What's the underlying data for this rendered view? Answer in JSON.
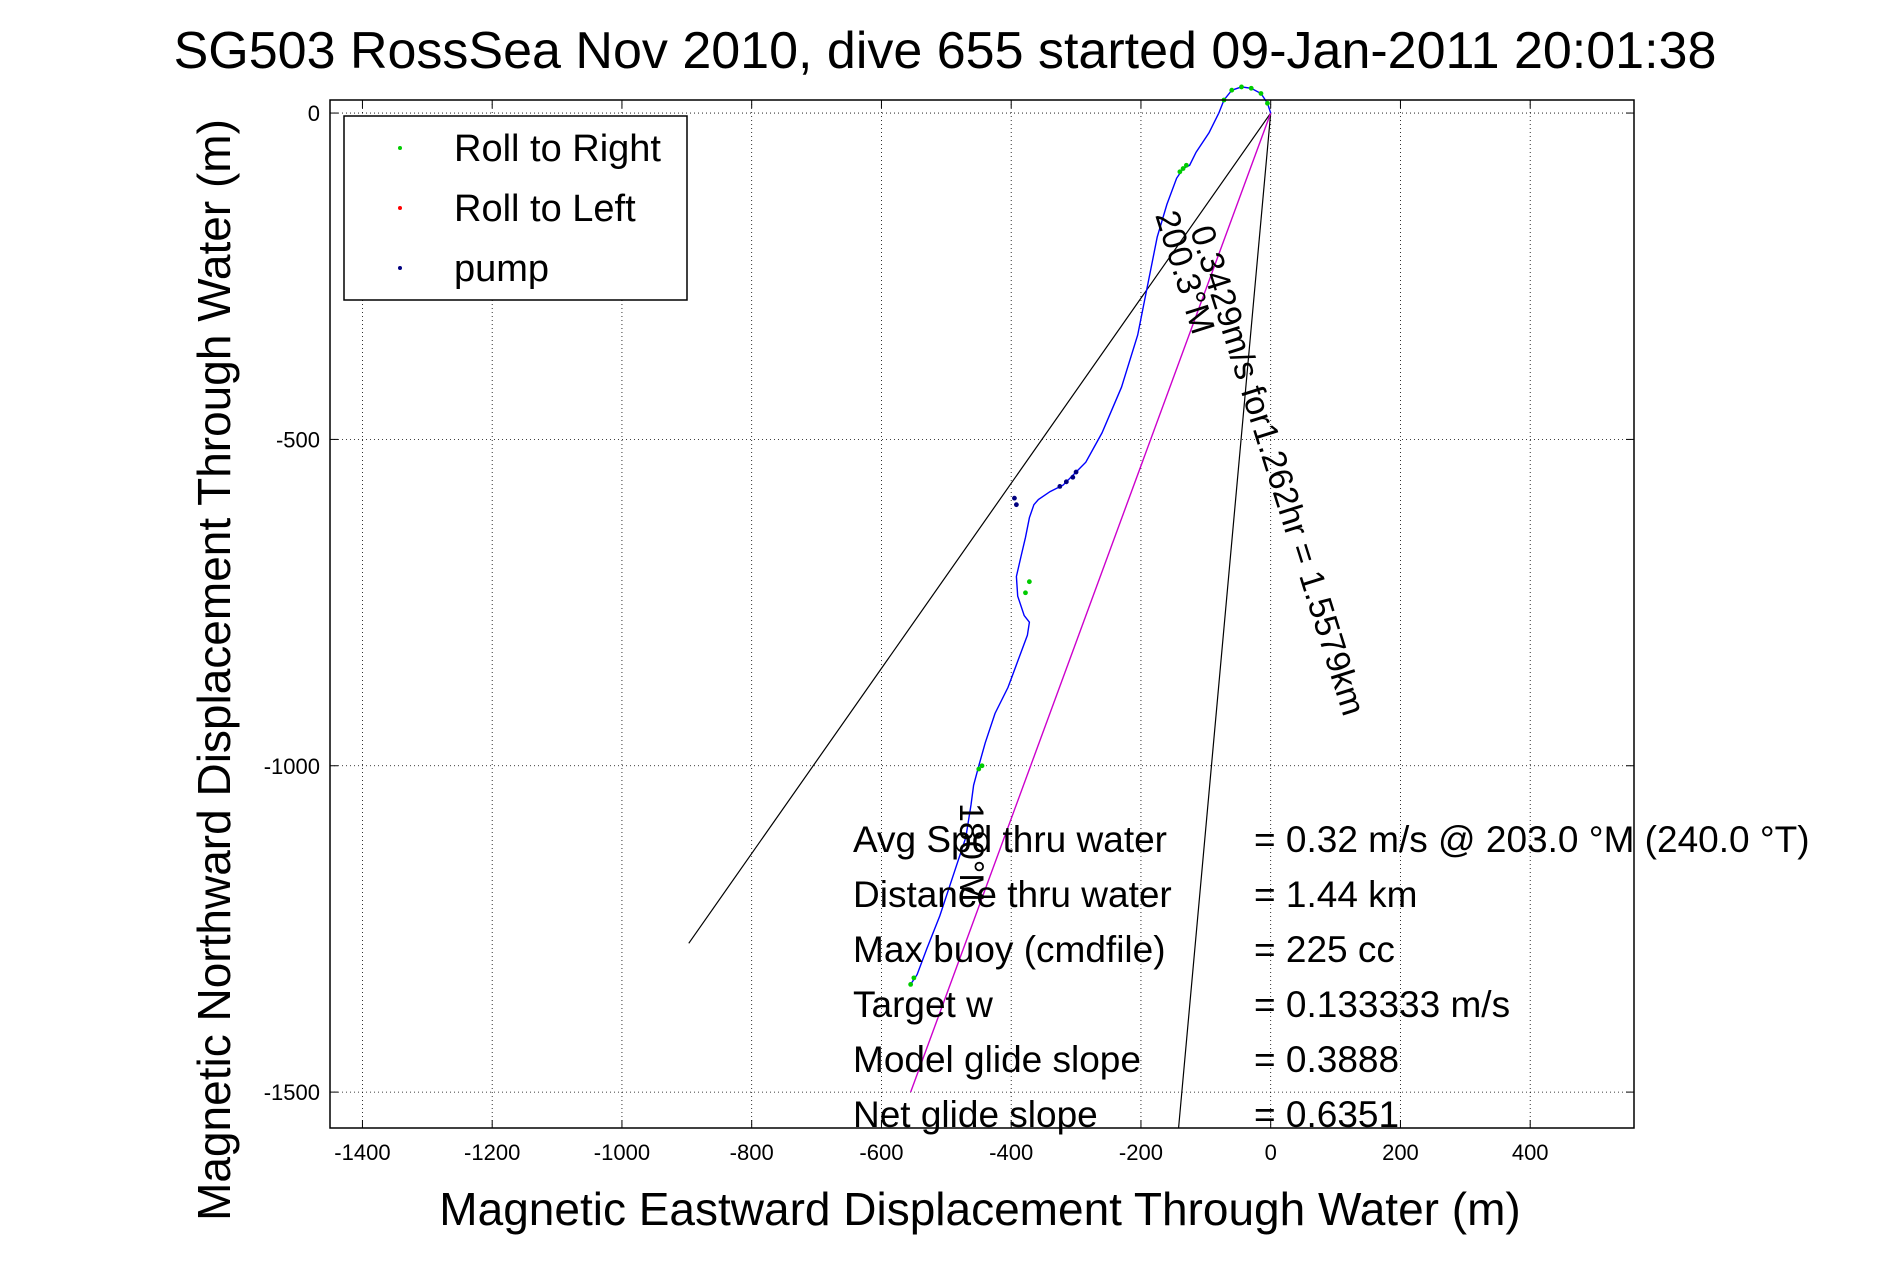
{
  "chart_data": {
    "type": "line",
    "title": "SG503 RossSea Nov 2010, dive 655 started 09-Jan-2011 20:01:38",
    "xlabel": "Magnetic Eastward Displacement Through Water (m)",
    "ylabel": "Magnetic Northward Displacement Through Water (m)",
    "xlim": [
      -1450,
      560
    ],
    "ylim": [
      -1555,
      20
    ],
    "x_ticks": [
      -1400,
      -1200,
      -1000,
      -800,
      -600,
      -400,
      -200,
      0,
      200,
      400
    ],
    "x_tick_labels": [
      "-1400",
      "-1200",
      "-1000",
      "-800",
      "-600",
      "-400",
      "-200",
      "0",
      "200",
      "400"
    ],
    "y_ticks": [
      0,
      -500,
      -1000,
      -1500
    ],
    "y_tick_labels": [
      "0",
      "-500",
      "-1000",
      "-1500"
    ],
    "grid": true,
    "legend_position": "top-left",
    "legend": [
      {
        "label": "Roll to Right",
        "color": "#00cc00"
      },
      {
        "label": "Roll to Left",
        "color": "#ff0000"
      },
      {
        "label": "pump",
        "color": "#000080"
      }
    ],
    "track": {
      "color": "#0000ff",
      "x": [
        0,
        -5,
        -15,
        -30,
        -45,
        -60,
        -72,
        -80,
        -95,
        -115,
        -125,
        -135,
        -145,
        -160,
        -175,
        -185,
        -195,
        -205,
        -230,
        -260,
        -285,
        -300,
        -320,
        -340,
        -358,
        -365,
        -372,
        -378,
        -385,
        -392,
        -390,
        -380,
        -372,
        -375,
        -390,
        -405,
        -425,
        -440,
        -450,
        -458,
        -462,
        -470,
        -490,
        -510,
        -530,
        -545,
        -555
      ],
      "y": [
        0,
        15,
        30,
        38,
        40,
        35,
        20,
        0,
        -30,
        -60,
        -80,
        -85,
        -100,
        -140,
        -190,
        -240,
        -290,
        -340,
        -420,
        -490,
        -535,
        -550,
        -570,
        -580,
        -592,
        -600,
        -620,
        -650,
        -680,
        -710,
        -740,
        -770,
        -780,
        -800,
        -840,
        -880,
        -920,
        -965,
        -1000,
        -1030,
        -1060,
        -1110,
        -1170,
        -1230,
        -1280,
        -1320,
        -1335
      ]
    },
    "roll_right_points": {
      "x": [
        -5,
        -15,
        -30,
        -45,
        -60,
        -72,
        -130,
        -135,
        -140,
        -372,
        -378,
        -445,
        -450,
        -550,
        -555
      ],
      "y": [
        15,
        30,
        38,
        40,
        35,
        20,
        -80,
        -85,
        -90,
        -718,
        -735,
        -1000,
        -1005,
        -1325,
        -1335
      ]
    },
    "pump_points": {
      "x": [
        -300,
        -305,
        -315,
        -325,
        -395,
        -392
      ],
      "y": [
        -550,
        -558,
        -565,
        -572,
        -590,
        -600
      ]
    },
    "avg_line": {
      "color": "#cc00cc",
      "x": [
        0,
        -555
      ],
      "y": [
        0,
        -1500
      ]
    },
    "cone_lines": [
      {
        "x": [
          0,
          -897
        ],
        "y": [
          0,
          -1272
        ]
      },
      {
        "x": [
          0,
          -142
        ],
        "y": [
          0,
          -1555
        ]
      }
    ],
    "diag_labels": [
      "0.3429m/s for1.262hr = 1.5579km",
      "200.3°M",
      "180°M"
    ],
    "info_rows": [
      {
        "label": "Avg Spd thru water",
        "value": "=  0.32 m/s @ 203.0 °M (240.0 °T)"
      },
      {
        "label": "Distance thru water",
        "value": "=  1.44 km"
      },
      {
        "label": "Max buoy (cmdfile)",
        "value": "= 225 cc"
      },
      {
        "label": "Target w",
        "value": "= 0.133333 m/s"
      },
      {
        "label": "Model glide slope",
        "value": "= 0.3888"
      },
      {
        "label": "Net glide slope",
        "value": "= 0.6351"
      }
    ]
  }
}
